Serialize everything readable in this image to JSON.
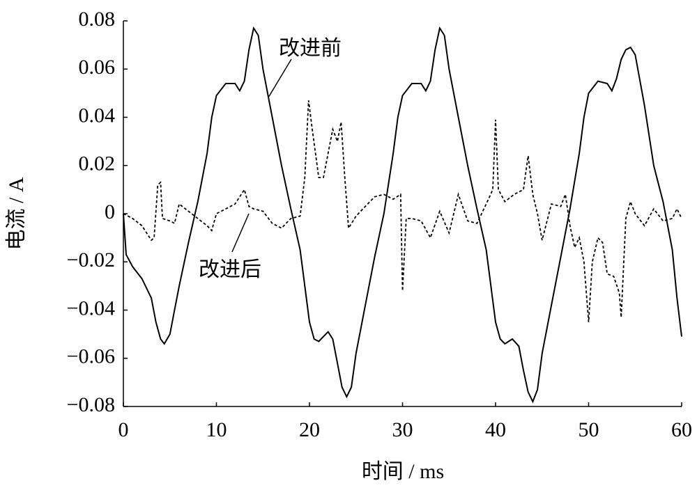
{
  "chart_data": {
    "type": "line",
    "xlabel": "时间 / ms",
    "ylabel": "电流 / A",
    "xlim": [
      0,
      60
    ],
    "xticks": [
      0,
      10,
      20,
      30,
      40,
      50,
      60
    ],
    "ylim": [
      -0.08,
      0.08
    ],
    "yticks": [
      {
        "value": -0.08,
        "label": "−0.08"
      },
      {
        "value": -0.06,
        "label": "−0.06"
      },
      {
        "value": -0.04,
        "label": "−0.04"
      },
      {
        "value": -0.02,
        "label": "−0.02"
      },
      0,
      0.02,
      0.04,
      0.06,
      0.08
    ],
    "series": [
      {
        "name": "改进前",
        "color": "#000000",
        "dash": false,
        "x": [
          0,
          0.3,
          1,
          2,
          3,
          3.5,
          4,
          4.4,
          5,
          5.5,
          6,
          7,
          8,
          9,
          9.5,
          10,
          11,
          12,
          12.5,
          13,
          13.5,
          14,
          14.5,
          15,
          16,
          17,
          18,
          19,
          19.5,
          20,
          20.5,
          21,
          22,
          22.5,
          23,
          23.5,
          24,
          24.5,
          25,
          26,
          27,
          28,
          29,
          29.5,
          30,
          31,
          32,
          32.5,
          33,
          33.5,
          34,
          34.5,
          35,
          36,
          37,
          38,
          39,
          39.5,
          40,
          40.5,
          41,
          41.8,
          42.5,
          43,
          43.5,
          44,
          44.5,
          45,
          46,
          47,
          48,
          49,
          49.5,
          50,
          51,
          52,
          52.5,
          53,
          53.5,
          54,
          54.5,
          55,
          56,
          57,
          58,
          59,
          59.5,
          60
        ],
        "values": [
          0,
          -0.017,
          -0.022,
          -0.027,
          -0.035,
          -0.045,
          -0.052,
          -0.054,
          -0.05,
          -0.04,
          -0.03,
          -0.012,
          0.005,
          0.025,
          0.04,
          0.049,
          0.054,
          0.054,
          0.051,
          0.055,
          0.068,
          0.077,
          0.074,
          0.06,
          0.04,
          0.02,
          0.002,
          -0.015,
          -0.03,
          -0.045,
          -0.052,
          -0.053,
          -0.049,
          -0.052,
          -0.062,
          -0.072,
          -0.076,
          -0.072,
          -0.058,
          -0.038,
          -0.018,
          0,
          0.025,
          0.04,
          0.049,
          0.054,
          0.054,
          0.051,
          0.055,
          0.068,
          0.077,
          0.074,
          0.06,
          0.04,
          0.02,
          0.002,
          -0.015,
          -0.03,
          -0.045,
          -0.052,
          -0.054,
          -0.052,
          -0.055,
          -0.065,
          -0.074,
          -0.078,
          -0.073,
          -0.058,
          -0.038,
          -0.018,
          0.002,
          0.025,
          0.04,
          0.05,
          0.055,
          0.054,
          0.051,
          0.056,
          0.064,
          0.068,
          0.069,
          0.066,
          0.045,
          0.02,
          0.005,
          -0.015,
          -0.035,
          -0.051
        ]
      },
      {
        "name": "改进后",
        "color": "#000000",
        "dash": true,
        "x": [
          0,
          1,
          2,
          3,
          3.3,
          3.7,
          4,
          4.2,
          5,
          5.5,
          6,
          7,
          8,
          9,
          9.5,
          10,
          11,
          12,
          13,
          13.5,
          14,
          15,
          16,
          17,
          18,
          19,
          19.5,
          19.9,
          20.3,
          21,
          21.5,
          22,
          22.5,
          23,
          23.4,
          23.8,
          24.2,
          25,
          26,
          27,
          28,
          29,
          29.8,
          30,
          30.4,
          31,
          32,
          33,
          34,
          35,
          36,
          37,
          38,
          39,
          39.7,
          40,
          40.3,
          41,
          42,
          43,
          43.5,
          44,
          44.5,
          45,
          46,
          47,
          47.5,
          48,
          48.5,
          49,
          49.5,
          50,
          50.4,
          51,
          51.5,
          52,
          52.7,
          53.3,
          53.5,
          54,
          54.5,
          55,
          56,
          57,
          58,
          59,
          59.5,
          60
        ],
        "values": [
          0,
          -0.002,
          -0.005,
          -0.011,
          -0.01,
          0.012,
          0.013,
          -0.002,
          -0.003,
          -0.004,
          0.004,
          0.001,
          -0.002,
          -0.005,
          -0.007,
          0,
          0.002,
          0.004,
          0.01,
          0.003,
          0.002,
          0.001,
          -0.004,
          -0.006,
          -0.002,
          -0.001,
          0.015,
          0.047,
          0.035,
          0.015,
          0.015,
          0.025,
          0.035,
          0.03,
          0.038,
          0.015,
          -0.006,
          -0.001,
          0.003,
          0.007,
          0.008,
          0.006,
          0.008,
          -0.032,
          -0.002,
          -0.002,
          -0.003,
          -0.01,
          0.001,
          -0.008,
          0.008,
          -0.003,
          -0.004,
          0.004,
          0.01,
          0.039,
          0.01,
          0.005,
          0.008,
          0.01,
          0.024,
          0.008,
          0,
          -0.011,
          0.004,
          0.003,
          0.008,
          -0.005,
          -0.014,
          -0.01,
          -0.02,
          -0.045,
          -0.02,
          -0.01,
          -0.012,
          -0.025,
          -0.026,
          -0.033,
          -0.043,
          -0.002,
          0.005,
          0,
          -0.005,
          0.002,
          -0.003,
          -0.002,
          0.002,
          -0.002
        ]
      }
    ]
  }
}
